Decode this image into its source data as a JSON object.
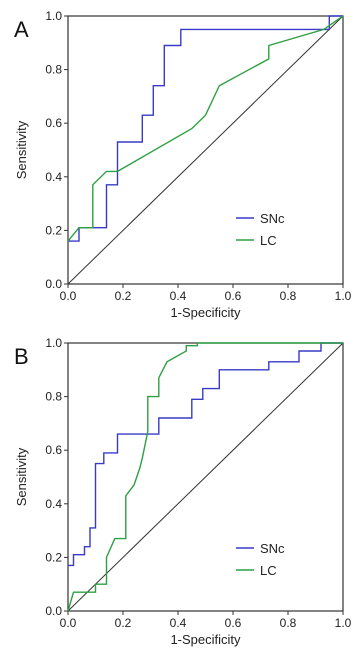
{
  "chart_data": [
    {
      "type": "line",
      "panel_label": "A",
      "xlabel": "1-Specificity",
      "ylabel": "Sensitivity",
      "xlim": [
        0,
        1
      ],
      "ylim": [
        0,
        1
      ],
      "xticks": [
        "0.0",
        "0.2",
        "0.4",
        "0.6",
        "0.8",
        "1.0"
      ],
      "yticks": [
        "0.0",
        "0.2",
        "0.4",
        "0.6",
        "0.8",
        "1.0"
      ],
      "grid": false,
      "legend_position": "bottom-right",
      "reference_line": [
        [
          0,
          0
        ],
        [
          1,
          1
        ]
      ],
      "series": [
        {
          "name": "SNc",
          "color": "#3a3ac8",
          "points": [
            [
              0,
              0.16
            ],
            [
              0.04,
              0.16
            ],
            [
              0.04,
              0.21
            ],
            [
              0.14,
              0.21
            ],
            [
              0.14,
              0.37
            ],
            [
              0.18,
              0.37
            ],
            [
              0.18,
              0.53
            ],
            [
              0.27,
              0.53
            ],
            [
              0.27,
              0.63
            ],
            [
              0.31,
              0.63
            ],
            [
              0.31,
              0.74
            ],
            [
              0.35,
              0.74
            ],
            [
              0.35,
              0.89
            ],
            [
              0.41,
              0.89
            ],
            [
              0.41,
              0.95
            ],
            [
              0.95,
              0.95
            ],
            [
              0.95,
              1.0
            ],
            [
              1.0,
              1.0
            ]
          ]
        },
        {
          "name": "LC",
          "color": "#2ea043",
          "points": [
            [
              0,
              0.16
            ],
            [
              0.04,
              0.21
            ],
            [
              0.09,
              0.21
            ],
            [
              0.09,
              0.37
            ],
            [
              0.14,
              0.42
            ],
            [
              0.18,
              0.42
            ],
            [
              0.45,
              0.58
            ],
            [
              0.5,
              0.63
            ],
            [
              0.55,
              0.74
            ],
            [
              0.73,
              0.84
            ],
            [
              0.73,
              0.89
            ],
            [
              0.93,
              0.95
            ],
            [
              1.0,
              1.0
            ]
          ]
        }
      ]
    },
    {
      "type": "line",
      "panel_label": "B",
      "xlabel": "1-Specificity",
      "ylabel": "Sensitivity",
      "xlim": [
        0,
        1
      ],
      "ylim": [
        0,
        1
      ],
      "xticks": [
        "0.0",
        "0.2",
        "0.4",
        "0.6",
        "0.8",
        "1.0"
      ],
      "yticks": [
        "0.0",
        "0.2",
        "0.4",
        "0.6",
        "0.8",
        "1.0"
      ],
      "grid": false,
      "legend_position": "bottom-right",
      "reference_line": [
        [
          0,
          0
        ],
        [
          1,
          1
        ]
      ],
      "series": [
        {
          "name": "SNc",
          "color": "#3a3ac8",
          "points": [
            [
              0,
              0.17
            ],
            [
              0.02,
              0.17
            ],
            [
              0.02,
              0.21
            ],
            [
              0.06,
              0.21
            ],
            [
              0.06,
              0.24
            ],
            [
              0.08,
              0.24
            ],
            [
              0.08,
              0.31
            ],
            [
              0.1,
              0.31
            ],
            [
              0.1,
              0.55
            ],
            [
              0.13,
              0.55
            ],
            [
              0.13,
              0.59
            ],
            [
              0.18,
              0.59
            ],
            [
              0.18,
              0.66
            ],
            [
              0.33,
              0.66
            ],
            [
              0.33,
              0.72
            ],
            [
              0.45,
              0.72
            ],
            [
              0.45,
              0.79
            ],
            [
              0.49,
              0.79
            ],
            [
              0.49,
              0.83
            ],
            [
              0.55,
              0.83
            ],
            [
              0.55,
              0.9
            ],
            [
              0.73,
              0.9
            ],
            [
              0.73,
              0.93
            ],
            [
              0.84,
              0.93
            ],
            [
              0.84,
              0.97
            ],
            [
              0.92,
              0.97
            ],
            [
              0.92,
              1.0
            ],
            [
              1.0,
              1.0
            ]
          ]
        },
        {
          "name": "LC",
          "color": "#2ea043",
          "points": [
            [
              0,
              0
            ],
            [
              0.02,
              0.07
            ],
            [
              0.1,
              0.07
            ],
            [
              0.1,
              0.1
            ],
            [
              0.14,
              0.1
            ],
            [
              0.14,
              0.2
            ],
            [
              0.17,
              0.27
            ],
            [
              0.21,
              0.27
            ],
            [
              0.21,
              0.43
            ],
            [
              0.24,
              0.47
            ],
            [
              0.26,
              0.53
            ],
            [
              0.27,
              0.57
            ],
            [
              0.29,
              0.67
            ],
            [
              0.29,
              0.8
            ],
            [
              0.33,
              0.8
            ],
            [
              0.33,
              0.87
            ],
            [
              0.36,
              0.93
            ],
            [
              0.43,
              0.97
            ],
            [
              0.43,
              0.99
            ],
            [
              0.47,
              0.99
            ],
            [
              0.47,
              1.0
            ],
            [
              1.0,
              1.0
            ]
          ]
        }
      ]
    }
  ]
}
